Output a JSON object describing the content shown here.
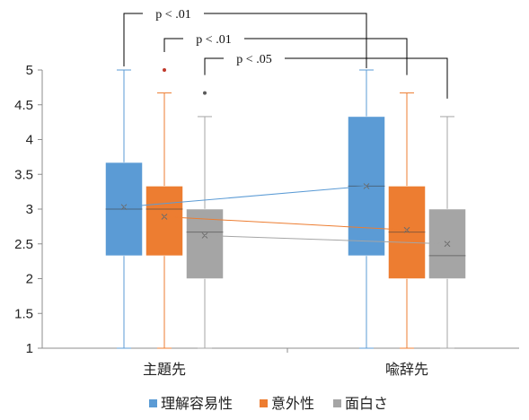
{
  "chart_data": {
    "type": "box",
    "categories": [
      "主題先",
      "喩辞先"
    ],
    "ylim": [
      1,
      5
    ],
    "yticks": [
      "1",
      "1.5",
      "2",
      "2.5",
      "3",
      "3.5",
      "4",
      "4.5",
      "5"
    ],
    "legend_position": "bottom",
    "grid": false,
    "series": [
      {
        "name": "理解容易性",
        "color": "#5B9BD5",
        "boxes": [
          {
            "min": 1,
            "q1": 2.33,
            "median": 3.0,
            "q3": 3.67,
            "max": 5,
            "mean": 3.03,
            "outliers": []
          },
          {
            "min": 1,
            "q1": 2.33,
            "median": 3.33,
            "q3": 4.33,
            "max": 5,
            "mean": 3.33,
            "outliers": []
          }
        ]
      },
      {
        "name": "意外性",
        "color": "#ED7D31",
        "boxes": [
          {
            "min": 1,
            "q1": 2.33,
            "median": 3.0,
            "q3": 3.33,
            "max": 4.67,
            "mean": 2.89,
            "outliers": [
              5
            ]
          },
          {
            "min": 1,
            "q1": 2.0,
            "median": 2.67,
            "q3": 3.33,
            "max": 4.67,
            "mean": 2.7,
            "outliers": []
          }
        ]
      },
      {
        "name": "面白さ",
        "color": "#A5A5A5",
        "boxes": [
          {
            "min": 1,
            "q1": 2.0,
            "median": 2.67,
            "q3": 3.0,
            "max": 4.33,
            "mean": 2.62,
            "outliers": [
              4.67
            ]
          },
          {
            "min": 1,
            "q1": 2.0,
            "median": 2.33,
            "q3": 3.0,
            "max": 4.33,
            "mean": 2.5,
            "outliers": []
          }
        ]
      }
    ],
    "significance": [
      {
        "label": "p < .01",
        "series": 0
      },
      {
        "label": "p < .01",
        "series": 1
      },
      {
        "label": "p < .05",
        "series": 2
      }
    ]
  }
}
